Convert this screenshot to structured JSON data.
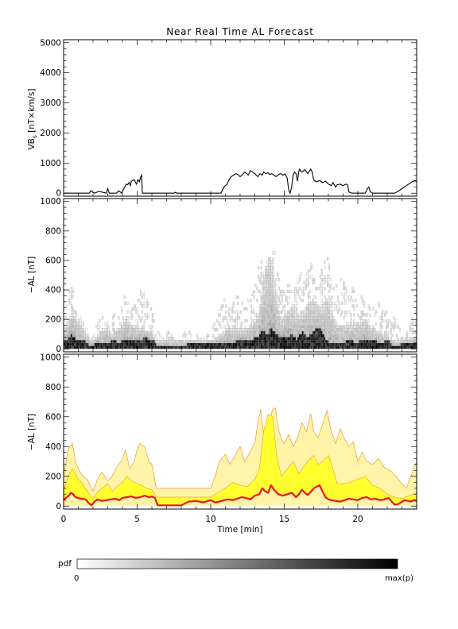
{
  "colors": {
    "ink": "#000000",
    "red": "#e8141c",
    "orange": "#f2a33a",
    "yellow": "#ffff30",
    "paleyellow": "#fff4a8"
  },
  "title": "Near Real Time AL Forecast",
  "chart_data": [
    {
      "type": "line",
      "ylabel_main": "VB",
      "ylabel_sub": "s",
      "ylabel_rest": " [nT×km/s]",
      "ylim": [
        -100,
        5100
      ],
      "yticks": [
        0,
        1000,
        2000,
        3000,
        4000,
        5000
      ],
      "xlim": [
        0,
        24
      ],
      "series": [
        {
          "x": [
            0,
            1.5,
            1.75,
            1.85,
            2.1,
            2.4,
            2.9,
            3.0,
            3.1,
            3.35,
            3.6,
            3.75,
            3.95,
            4.1,
            4.25,
            4.35,
            4.45,
            4.55,
            4.6,
            4.8,
            4.95,
            5.05,
            5.15,
            5.25,
            5.3,
            5.35,
            5.5,
            6.0,
            7.5,
            7.6,
            7.7,
            8.0,
            10.7,
            10.9,
            11.1,
            11.3,
            11.4,
            11.55,
            11.7,
            11.85,
            12.0,
            12.15,
            12.3,
            12.45,
            12.55,
            12.7,
            12.85,
            13.0,
            13.1,
            13.2,
            13.35,
            13.5,
            13.6,
            13.75,
            13.9,
            14.0,
            14.15,
            14.3,
            14.45,
            14.6,
            14.75,
            14.9,
            15.05,
            15.2,
            15.3,
            15.4,
            15.5,
            15.6,
            15.7,
            15.8,
            15.9,
            16.0,
            16.05,
            16.1,
            16.2,
            16.4,
            16.6,
            16.8,
            16.9,
            17.0,
            17.1,
            17.2,
            17.4,
            17.6,
            17.8,
            18.0,
            18.2,
            18.3,
            18.5,
            18.6,
            18.8,
            19.0,
            19.2,
            19.3,
            19.4,
            19.6,
            20.5,
            20.65,
            20.75,
            20.85,
            21.0,
            21.5,
            22.0,
            22.5,
            22.8,
            23.0,
            23.2,
            23.4,
            23.6,
            23.75,
            23.9,
            24.0
          ],
          "y": [
            0,
            0,
            0,
            80,
            0,
            60,
            0,
            150,
            0,
            0,
            0,
            80,
            0,
            150,
            300,
            280,
            350,
            250,
            400,
            450,
            300,
            450,
            380,
            550,
            600,
            0,
            0,
            0,
            0,
            30,
            0,
            0,
            0,
            200,
            300,
            500,
            550,
            600,
            650,
            620,
            550,
            600,
            700,
            650,
            600,
            750,
            700,
            650,
            600,
            550,
            650,
            600,
            700,
            650,
            680,
            620,
            650,
            600,
            550,
            620,
            650,
            600,
            640,
            500,
            100,
            0,
            200,
            600,
            700,
            650,
            400,
            750,
            800,
            750,
            700,
            780,
            650,
            800,
            700,
            450,
            400,
            380,
            420,
            350,
            400,
            300,
            250,
            350,
            200,
            280,
            300,
            250,
            300,
            280,
            40,
            0,
            0,
            150,
            200,
            50,
            0,
            0,
            0,
            0,
            80,
            150,
            220,
            280,
            350,
            400,
            420,
            380
          ]
        }
      ]
    },
    {
      "type": "heatmap",
      "ylabel": "−AL [nT]",
      "ylim": [
        -20,
        1020
      ],
      "yticks": [
        0,
        200,
        400,
        600,
        800,
        1000
      ],
      "xlim": [
        0,
        24
      ]
    },
    {
      "type": "area",
      "ylabel": "−AL [nT]",
      "xlabel": "Time [min]",
      "ylim": [
        -20,
        1020
      ],
      "yticks": [
        0,
        200,
        400,
        600,
        800,
        1000
      ],
      "xlim": [
        0,
        24
      ],
      "xticks": [
        0,
        5,
        10,
        15,
        20
      ],
      "series": [
        {
          "x": [
            0,
            0.2,
            0.35,
            0.5,
            0.65,
            0.8,
            1.0,
            1.2,
            1.5,
            1.7,
            1.9,
            2.1,
            2.3,
            2.6,
            2.9,
            3.2,
            3.5,
            3.8,
            4.0,
            4.3,
            4.6,
            4.9,
            5.2,
            5.5,
            5.8,
            6.0,
            6.2,
            6.4,
            7.0,
            8.0,
            8.5,
            9.0,
            9.5,
            10.0,
            10.3,
            10.6,
            10.9,
            11.2,
            11.5,
            11.8,
            12.1,
            12.4,
            12.7,
            13.0,
            13.3,
            13.5,
            13.7,
            13.9,
            14.1,
            14.3,
            14.6,
            14.9,
            15.2,
            15.5,
            15.8,
            16.0,
            16.2,
            16.4,
            16.6,
            16.8,
            17.0,
            17.2,
            17.4,
            17.6,
            17.8,
            18.0,
            18.2,
            18.5,
            18.8,
            19.1,
            19.4,
            19.7,
            20.0,
            20.3,
            20.6,
            20.9,
            21.2,
            21.5,
            21.8,
            22.1,
            22.3,
            22.5,
            22.8,
            23.0,
            23.2,
            23.4,
            23.6,
            23.8,
            24.0
          ],
          "y": [
            40,
            60,
            70,
            90,
            80,
            60,
            55,
            50,
            45,
            20,
            5,
            30,
            45,
            35,
            40,
            45,
            50,
            40,
            55,
            60,
            65,
            55,
            60,
            70,
            60,
            65,
            55,
            5,
            5,
            5,
            30,
            35,
            25,
            40,
            25,
            30,
            40,
            45,
            40,
            50,
            60,
            55,
            45,
            70,
            80,
            120,
            100,
            90,
            140,
            110,
            80,
            70,
            80,
            90,
            60,
            80,
            110,
            90,
            75,
            95,
            120,
            130,
            140,
            100,
            60,
            45,
            40,
            35,
            30,
            40,
            50,
            45,
            40,
            55,
            60,
            45,
            50,
            40,
            45,
            55,
            30,
            10,
            15,
            30,
            40,
            35,
            30,
            40,
            35
          ]
        },
        {
          "x": [
            0,
            0.3,
            0.6,
            1.0,
            1.3,
            1.6,
            2.0,
            2.3,
            2.6,
            3.0,
            3.3,
            3.6,
            4.0,
            4.3,
            4.6,
            5.0,
            5.3,
            5.6,
            6.0,
            6.3,
            7.0,
            8.0,
            9.0,
            10.0,
            10.5,
            11.0,
            11.5,
            12.0,
            12.5,
            13.0,
            13.3,
            13.6,
            13.9,
            14.2,
            14.5,
            14.8,
            15.2,
            15.6,
            16.0,
            16.3,
            16.6,
            17.0,
            17.3,
            17.6,
            18.0,
            18.3,
            18.6,
            19.0,
            19.5,
            20.0,
            20.5,
            21.0,
            21.5,
            22.0,
            22.5,
            23.0,
            23.5,
            24.0
          ],
          "y": [
            100,
            200,
            250,
            180,
            150,
            100,
            50,
            90,
            120,
            150,
            100,
            130,
            160,
            200,
            170,
            150,
            140,
            120,
            110,
            60,
            60,
            60,
            60,
            60,
            90,
            120,
            160,
            140,
            130,
            180,
            250,
            500,
            620,
            600,
            330,
            200,
            250,
            300,
            220,
            260,
            300,
            340,
            280,
            300,
            340,
            250,
            150,
            150,
            160,
            180,
            200,
            140,
            120,
            80,
            60,
            50,
            70,
            90
          ]
        },
        {
          "x": [
            0,
            0.3,
            0.6,
            0.8,
            1.0,
            1.3,
            1.6,
            2.0,
            2.3,
            2.6,
            3.0,
            3.3,
            3.6,
            4.0,
            4.2,
            4.5,
            4.8,
            5.0,
            5.2,
            5.5,
            5.8,
            6.0,
            6.3,
            6.5,
            7.0,
            8.0,
            9.0,
            10.0,
            10.3,
            10.6,
            11.0,
            11.3,
            11.6,
            12.0,
            12.3,
            12.6,
            13.0,
            13.2,
            13.4,
            13.6,
            13.8,
            14.0,
            14.2,
            14.4,
            14.6,
            14.8,
            15.0,
            15.3,
            15.6,
            15.9,
            16.2,
            16.5,
            16.8,
            17.0,
            17.3,
            17.6,
            17.9,
            18.2,
            18.5,
            18.8,
            19.1,
            19.4,
            19.7,
            20.0,
            20.3,
            20.6,
            21.0,
            21.4,
            21.8,
            22.2,
            22.6,
            23.0,
            23.3,
            23.6,
            24.0
          ],
          "y": [
            200,
            380,
            420,
            300,
            250,
            200,
            180,
            100,
            180,
            230,
            170,
            200,
            260,
            310,
            380,
            250,
            300,
            380,
            420,
            400,
            300,
            280,
            120,
            120,
            120,
            120,
            120,
            120,
            200,
            300,
            350,
            280,
            330,
            400,
            300,
            350,
            420,
            560,
            650,
            470,
            500,
            560,
            650,
            660,
            520,
            450,
            420,
            480,
            400,
            460,
            560,
            500,
            620,
            500,
            460,
            550,
            640,
            500,
            420,
            520,
            450,
            400,
            430,
            300,
            360,
            300,
            280,
            320,
            260,
            240,
            200,
            150,
            120,
            200,
            300
          ]
        }
      ]
    }
  ],
  "colorbar": {
    "label": "pdf",
    "min_label": "0",
    "max_label": "max(p)"
  }
}
